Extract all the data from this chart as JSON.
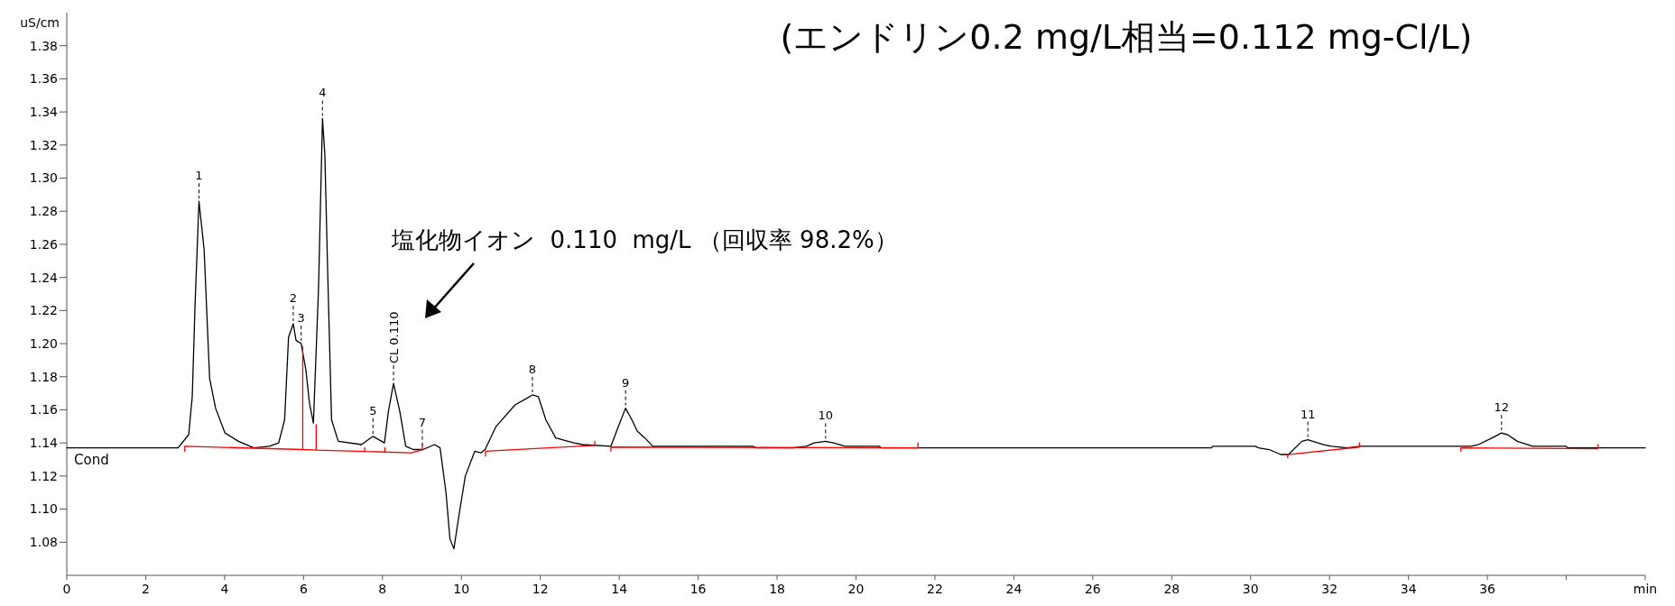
{
  "chart_data": {
    "type": "line",
    "title": "(エンドリン0.2 mg/L相当=0.112 mg-Cl/L)",
    "ylabel": "uS/cm",
    "xlim": [
      0,
      40
    ],
    "xticks": [
      0,
      2,
      4,
      6,
      8,
      10,
      12,
      14,
      16,
      18,
      20,
      22,
      24,
      26,
      28,
      30,
      32,
      34,
      36,
      {
        "value": 38,
        "label": null
      },
      {
        "value": 40,
        "label": "min"
      }
    ],
    "ylim": [
      1.06,
      1.4
    ],
    "yticks": [
      1.08,
      {
        "value": 1.1,
        "label": "1.10"
      },
      1.12,
      1.14,
      1.16,
      1.18,
      {
        "value": 1.2,
        "label": "1.20"
      },
      1.22,
      1.24,
      1.26,
      1.28,
      {
        "value": 1.3,
        "label": "1.30"
      },
      1.32,
      1.34,
      1.36,
      1.38
    ],
    "grid": false,
    "series": [
      {
        "name": "Cond",
        "color": "#000000",
        "x": [
          0,
          2.82,
          3.09,
          3.18,
          3.25,
          3.35,
          3.48,
          3.62,
          3.77,
          4.01,
          4.35,
          4.74,
          5.13,
          5.37,
          5.52,
          5.62,
          5.74,
          5.81,
          5.94,
          6.06,
          6.15,
          6.25,
          6.38,
          6.48,
          6.54,
          6.61,
          6.71,
          6.88,
          7.47,
          7.76,
          8.05,
          8.15,
          8.28,
          8.44,
          8.59,
          8.78,
          9.03,
          9.32,
          9.46,
          9.61,
          9.71,
          9.81,
          9.95,
          10.1,
          10.34,
          10.49,
          10.6,
          10.88,
          11.36,
          11.66,
          11.8,
          11.95,
          12.14,
          12.39,
          12.85,
          13.07,
          13.79,
          13.98,
          14.16,
          14.32,
          14.46,
          14.65,
          14.85,
          17.38,
          17.47,
          18.4,
          18.74,
          18.94,
          19.23,
          19.43,
          19.72,
          20.59,
          20.64,
          29,
          29.05,
          30.12,
          30.2,
          30.47,
          30.76,
          30.96,
          31.3,
          31.45,
          31.85,
          32.05,
          32.44,
          32.78,
          35.58,
          35.77,
          36.12,
          36.36,
          36.51,
          36.76,
          37.15,
          37.99,
          38.04,
          40
        ],
        "values": [
          1.137,
          1.137,
          1.145,
          1.168,
          1.223,
          1.286,
          1.257,
          1.179,
          1.161,
          1.146,
          1.141,
          1.137,
          1.138,
          1.14,
          1.154,
          1.204,
          1.212,
          1.202,
          1.2,
          1.184,
          1.164,
          1.152,
          1.234,
          1.336,
          1.314,
          1.245,
          1.154,
          1.141,
          1.139,
          1.144,
          1.14,
          1.159,
          1.176,
          1.159,
          1.138,
          1.136,
          1.136,
          1.139,
          1.137,
          1.11,
          1.082,
          1.076,
          1.098,
          1.12,
          1.135,
          1.134,
          1.136,
          1.15,
          1.163,
          1.167,
          1.169,
          1.168,
          1.154,
          1.143,
          1.14,
          1.139,
          1.138,
          1.15,
          1.161,
          1.154,
          1.147,
          1.143,
          1.138,
          1.138,
          1.137,
          1.137,
          1.138,
          1.14,
          1.141,
          1.14,
          1.138,
          1.138,
          1.137,
          1.137,
          1.138,
          1.138,
          1.137,
          1.136,
          1.133,
          1.133,
          1.141,
          1.142,
          1.139,
          1.138,
          1.137,
          1.138,
          1.138,
          1.139,
          1.143,
          1.146,
          1.145,
          1.141,
          1.138,
          1.138,
          1.137,
          1.137
        ]
      },
      {
        "color": "#ff0000",
        "x": [
          2.99,
          2.99,
          5.98,
          5.98,
          5.98,
          6.32,
          6.32,
          6.32,
          7.55,
          7.55,
          7.55,
          8.06,
          8.06,
          8.06,
          8.73,
          9.01,
          9.01
        ],
        "values": [
          1.135,
          1.138,
          1.136,
          1.198,
          1.136,
          1.1357,
          1.151,
          1.1357,
          1.1348,
          1.137,
          1.1348,
          1.1345,
          1.137,
          1.1345,
          1.134,
          1.136,
          1.139
        ]
      },
      {
        "color": "#ff0000",
        "x": [
          10.61,
          10.61,
          13.38,
          13.38
        ],
        "values": [
          1.132,
          1.135,
          1.1385,
          1.141
        ]
      },
      {
        "color": "#ff0000",
        "x": [
          13.79,
          13.79,
          21.57,
          21.57
        ],
        "values": [
          1.135,
          1.1375,
          1.137,
          1.14
        ]
      },
      {
        "color": "#ff0000",
        "x": [
          30.94,
          30.94,
          32.76,
          32.76
        ],
        "values": [
          1.131,
          1.133,
          1.1375,
          1.14
        ]
      },
      {
        "color": "#ff0000",
        "x": [
          35.33,
          35.33,
          38.8,
          38.8
        ],
        "values": [
          1.135,
          1.137,
          1.1365,
          1.139
        ]
      }
    ],
    "annotations": [
      "塩化物イオン  0.110  mg/L （回収率 98.2%）",
      {
        "text": "1",
        "x": 3.35,
        "y": 1.286
      },
      {
        "text": "2",
        "x": 5.74,
        "y": 1.212
      },
      {
        "text": "3",
        "x": 5.94,
        "y": 1.2
      },
      {
        "text": "4",
        "x": 6.48,
        "y": 1.336
      },
      {
        "text": "5",
        "x": 7.76,
        "y": 1.144
      },
      {
        "text": "CL 0.110",
        "x": 8.28,
        "y": 1.176
      },
      {
        "text": "7",
        "x": 9.01,
        "y": 1.137
      },
      {
        "text": "8",
        "x": 11.8,
        "y": 1.169
      },
      {
        "text": "9",
        "x": 14.16,
        "y": 1.161
      },
      {
        "text": "10",
        "x": 19.23,
        "y": 1.141
      },
      {
        "text": "11",
        "x": 31.45,
        "y": 1.142
      },
      {
        "text": "12",
        "x": 36.36,
        "y": 1.146
      }
    ]
  }
}
